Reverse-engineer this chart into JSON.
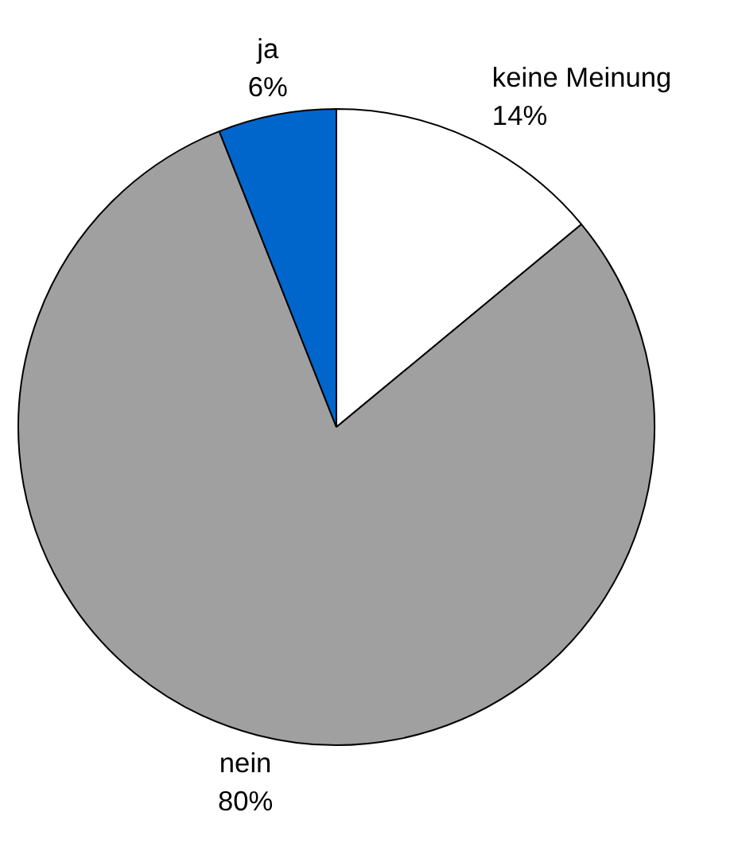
{
  "chart_data": {
    "type": "pie",
    "categories": [
      "keine Meinung",
      "nein",
      "ja"
    ],
    "values": [
      14,
      80,
      6
    ],
    "value_labels": [
      "14%",
      "80%",
      "6%"
    ],
    "colors": [
      "#ffffff",
      "#a0a0a0",
      "#0066cc"
    ]
  }
}
